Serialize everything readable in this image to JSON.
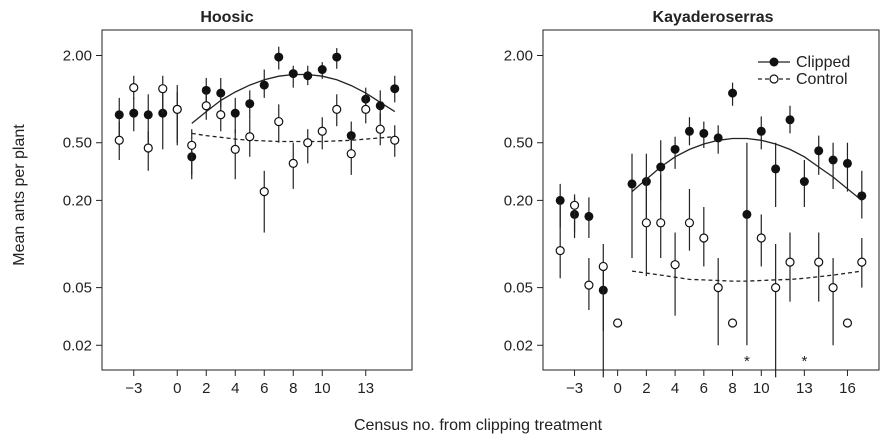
{
  "figure": {
    "ylabel": "Mean ants per plant",
    "xlabel": "Census no. from clipping treatment",
    "legend": {
      "clipped": "Clipped",
      "control": "Control"
    }
  },
  "chart_data": [
    {
      "type": "scatter",
      "title": "Hoosic",
      "yscale": "log",
      "ylim": [
        0.0135,
        3.0
      ],
      "xlim": [
        -4.5,
        15.5
      ],
      "x_ticks": [
        -3,
        0,
        2,
        4,
        6,
        8,
        10,
        13
      ],
      "y_ticks": [
        2.0,
        0.5,
        0.2,
        0.05,
        0.02
      ],
      "y_tick_labels": [
        "2.00",
        "0.50",
        "0.20",
        "0.05",
        "0.02"
      ],
      "series": [
        {
          "name": "Clipped",
          "marker": "filled-circle",
          "points": [
            {
              "x": -4,
              "y": 0.78,
              "lo": 0.48,
              "hi": 1.02
            },
            {
              "x": -3,
              "y": 0.8,
              "lo": 0.6,
              "hi": 1.02
            },
            {
              "x": -2,
              "y": 0.78,
              "lo": 0.5,
              "hi": 1.08
            },
            {
              "x": -1,
              "y": 0.8,
              "lo": 0.45,
              "hi": 1.18
            },
            {
              "x": 0,
              "y": 0.85,
              "lo": 0.48,
              "hi": 1.25
            },
            {
              "x": 1,
              "y": 0.4,
              "lo": 0.28,
              "hi": 0.48
            },
            {
              "x": 2,
              "y": 1.15,
              "lo": 0.85,
              "hi": 1.4
            },
            {
              "x": 3,
              "y": 1.1,
              "lo": 0.88,
              "hi": 1.4
            },
            {
              "x": 4,
              "y": 0.8,
              "lo": 0.58,
              "hi": 1.02
            },
            {
              "x": 5,
              "y": 0.93,
              "lo": 0.72,
              "hi": 1.15
            },
            {
              "x": 6,
              "y": 1.25,
              "lo": 1.02,
              "hi": 1.6
            },
            {
              "x": 7,
              "y": 1.95,
              "lo": 1.6,
              "hi": 2.3
            },
            {
              "x": 8,
              "y": 1.5,
              "lo": 1.2,
              "hi": 1.7
            },
            {
              "x": 9,
              "y": 1.45,
              "lo": 1.25,
              "hi": 1.7
            },
            {
              "x": 10,
              "y": 1.6,
              "lo": 1.38,
              "hi": 1.8
            },
            {
              "x": 11,
              "y": 1.95,
              "lo": 1.62,
              "hi": 2.25
            },
            {
              "x": 12,
              "y": 0.56,
              "lo": 0.42,
              "hi": 0.7
            },
            {
              "x": 13,
              "y": 1.0,
              "lo": 0.8,
              "hi": 1.2
            },
            {
              "x": 14,
              "y": 0.9,
              "lo": 0.7,
              "hi": 1.15
            },
            {
              "x": 15,
              "y": 1.18,
              "lo": 0.95,
              "hi": 1.45
            }
          ],
          "fit": [
            0.68,
            0.82,
            0.98,
            1.12,
            1.25,
            1.36,
            1.44,
            1.48,
            1.48,
            1.44,
            1.36,
            1.24,
            1.1,
            0.95,
            0.82
          ]
        },
        {
          "name": "Control",
          "marker": "open-circle",
          "points": [
            {
              "x": -4,
              "y": 0.52,
              "lo": 0.38,
              "hi": 0.7
            },
            {
              "x": -3,
              "y": 1.2,
              "lo": 1.0,
              "hi": 1.45
            },
            {
              "x": -2,
              "y": 0.46,
              "lo": 0.32,
              "hi": 0.6
            },
            {
              "x": -1,
              "y": 1.18,
              "lo": 0.8,
              "hi": 1.45
            },
            {
              "x": 0,
              "y": 0.85,
              "lo": 0.5,
              "hi": 1.12
            },
            {
              "x": 1,
              "y": 0.48,
              "lo": 0.3,
              "hi": 0.62
            },
            {
              "x": 2,
              "y": 0.9,
              "lo": 0.72,
              "hi": 1.12
            },
            {
              "x": 3,
              "y": 0.78,
              "lo": 0.6,
              "hi": 1.02
            },
            {
              "x": 4,
              "y": 0.45,
              "lo": 0.28,
              "hi": 0.62
            },
            {
              "x": 5,
              "y": 0.55,
              "lo": 0.4,
              "hi": 0.72
            },
            {
              "x": 6,
              "y": 0.23,
              "lo": 0.12,
              "hi": 0.32
            },
            {
              "x": 7,
              "y": 0.7,
              "lo": 0.5,
              "hi": 0.92
            },
            {
              "x": 8,
              "y": 0.36,
              "lo": 0.24,
              "hi": 0.5
            },
            {
              "x": 9,
              "y": 0.5,
              "lo": 0.36,
              "hi": 0.62
            },
            {
              "x": 10,
              "y": 0.6,
              "lo": 0.45,
              "hi": 0.75
            },
            {
              "x": 11,
              "y": 0.85,
              "lo": 0.65,
              "hi": 1.08
            },
            {
              "x": 12,
              "y": 0.42,
              "lo": 0.3,
              "hi": 0.56
            },
            {
              "x": 13,
              "y": 0.85,
              "lo": 0.68,
              "hi": 1.05
            },
            {
              "x": 14,
              "y": 0.62,
              "lo": 0.48,
              "hi": 0.8
            },
            {
              "x": 15,
              "y": 0.52,
              "lo": 0.4,
              "hi": 0.66
            }
          ],
          "fit": [
            0.58,
            0.56,
            0.545,
            0.53,
            0.52,
            0.515,
            0.51,
            0.51,
            0.51,
            0.51,
            0.515,
            0.52,
            0.53,
            0.54,
            0.55
          ]
        }
      ],
      "annotations": []
    },
    {
      "type": "scatter",
      "title": "Kayaderoserras",
      "yscale": "log",
      "ylim": [
        0.0135,
        3.0
      ],
      "xlim": [
        -4.5,
        17.5
      ],
      "x_ticks": [
        -3,
        0,
        2,
        4,
        6,
        8,
        10,
        13,
        16
      ],
      "y_ticks": [
        2.0,
        0.5,
        0.2,
        0.05,
        0.02
      ],
      "y_tick_labels": [
        "2.00",
        "0.50",
        "0.20",
        "0.05",
        "0.02"
      ],
      "series": [
        {
          "name": "Clipped",
          "marker": "filled-circle",
          "points": [
            {
              "x": -4,
              "y": 0.2,
              "lo": 0.13,
              "hi": 0.26
            },
            {
              "x": -3,
              "y": 0.16,
              "lo": 0.11,
              "hi": 0.22
            },
            {
              "x": -2,
              "y": 0.155,
              "lo": 0.11,
              "hi": 0.21
            },
            {
              "x": -1,
              "y": 0.048,
              "lo": 0.012,
              "hi": 0.065
            },
            {
              "x": 1,
              "y": 0.26,
              "lo": 0.08,
              "hi": 0.42
            },
            {
              "x": 2,
              "y": 0.27,
              "lo": 0.15,
              "hi": 0.42
            },
            {
              "x": 3,
              "y": 0.34,
              "lo": 0.2,
              "hi": 0.52
            },
            {
              "x": 4,
              "y": 0.45,
              "lo": 0.33,
              "hi": 0.55
            },
            {
              "x": 5,
              "y": 0.6,
              "lo": 0.48,
              "hi": 0.75
            },
            {
              "x": 6,
              "y": 0.58,
              "lo": 0.46,
              "hi": 0.7
            },
            {
              "x": 7,
              "y": 0.54,
              "lo": 0.42,
              "hi": 0.66
            },
            {
              "x": 8,
              "y": 1.1,
              "lo": 0.9,
              "hi": 1.3
            },
            {
              "x": 9,
              "y": 0.16,
              "lo": 0.02,
              "hi": 0.5
            },
            {
              "x": 10,
              "y": 0.6,
              "lo": 0.45,
              "hi": 0.76
            },
            {
              "x": 11,
              "y": 0.33,
              "lo": 0.18,
              "hi": 0.5
            },
            {
              "x": 12,
              "y": 0.72,
              "lo": 0.58,
              "hi": 0.9
            },
            {
              "x": 13,
              "y": 0.27,
              "lo": 0.18,
              "hi": 0.38
            },
            {
              "x": 14,
              "y": 0.44,
              "lo": 0.3,
              "hi": 0.56
            },
            {
              "x": 15,
              "y": 0.38,
              "lo": 0.24,
              "hi": 0.5
            },
            {
              "x": 16,
              "y": 0.36,
              "lo": 0.23,
              "hi": 0.5
            },
            {
              "x": 17,
              "y": 0.215,
              "lo": 0.15,
              "hi": 0.32
            }
          ],
          "fit": [
            0.23,
            0.28,
            0.34,
            0.4,
            0.45,
            0.49,
            0.52,
            0.535,
            0.535,
            0.52,
            0.49,
            0.45,
            0.4,
            0.34,
            0.29,
            0.24,
            0.2
          ]
        },
        {
          "name": "Control",
          "marker": "open-circle",
          "points": [
            {
              "x": -4,
              "y": 0.09,
              "lo": 0.058,
              "hi": 0.19
            },
            {
              "x": -3,
              "y": 0.185,
              "lo": 0.12,
              "hi": 0.21
            },
            {
              "x": -2,
              "y": 0.052,
              "lo": 0.035,
              "hi": 0.08
            },
            {
              "x": -1,
              "y": 0.07,
              "lo": 0.025,
              "hi": 0.1
            },
            {
              "x": 0,
              "y": 0.0285,
              "lo": null,
              "hi": null
            },
            {
              "x": 2,
              "y": 0.14,
              "lo": 0.06,
              "hi": 0.3
            },
            {
              "x": 3,
              "y": 0.14,
              "lo": 0.08,
              "hi": 0.3
            },
            {
              "x": 4,
              "y": 0.072,
              "lo": 0.032,
              "hi": 0.12
            },
            {
              "x": 5,
              "y": 0.14,
              "lo": 0.09,
              "hi": 0.24
            },
            {
              "x": 6,
              "y": 0.11,
              "lo": 0.07,
              "hi": 0.18
            },
            {
              "x": 7,
              "y": 0.05,
              "lo": 0.02,
              "hi": 0.08
            },
            {
              "x": 8,
              "y": 0.0285,
              "lo": null,
              "hi": null
            },
            {
              "x": 10,
              "y": 0.11,
              "lo": 0.07,
              "hi": 0.16
            },
            {
              "x": 11,
              "y": 0.05,
              "lo": 0.012,
              "hi": 0.1
            },
            {
              "x": 12,
              "y": 0.075,
              "lo": 0.04,
              "hi": 0.12
            },
            {
              "x": 14,
              "y": 0.075,
              "lo": 0.04,
              "hi": 0.12
            },
            {
              "x": 15,
              "y": 0.05,
              "lo": 0.02,
              "hi": 0.08
            },
            {
              "x": 16,
              "y": 0.0285,
              "lo": null,
              "hi": null
            },
            {
              "x": 17,
              "y": 0.075,
              "lo": 0.05,
              "hi": 0.11
            }
          ],
          "fit": [
            0.065,
            0.063,
            0.061,
            0.059,
            0.057,
            0.0565,
            0.056,
            0.0555,
            0.0555,
            0.056,
            0.0565,
            0.057,
            0.058,
            0.0595,
            0.061,
            0.063,
            0.065
          ]
        }
      ],
      "annotations": [
        {
          "text": "*",
          "x": 9
        },
        {
          "text": "*",
          "x": 13
        }
      ]
    }
  ]
}
